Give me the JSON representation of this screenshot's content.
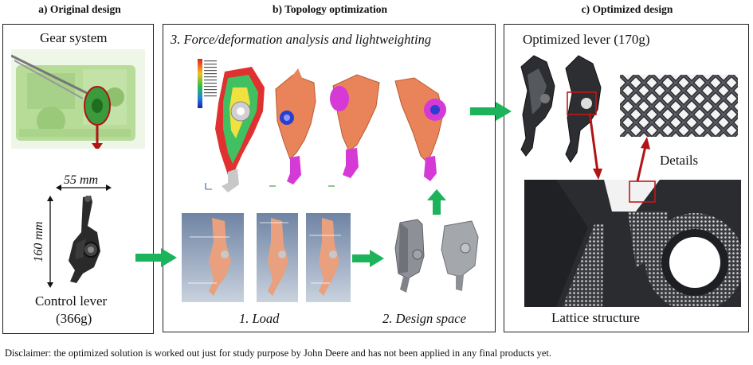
{
  "panels": {
    "a": {
      "title": "a) Original design",
      "gear_label": "Gear system",
      "width_dim": "55 mm",
      "height_dim": "160 mm",
      "lever_label": "Control lever",
      "lever_mass": "(366g)"
    },
    "b": {
      "title": "b) Topology optimization",
      "step3": "3. Force/deformation analysis and lightweighting",
      "step1": "1. Load",
      "step2": "2. Design space"
    },
    "c": {
      "title": "c) Optimized design",
      "optimized_label": "Optimized lever (170g)",
      "details_label": "Details",
      "lattice_label": "Lattice structure"
    }
  },
  "disclaimer": "Disclaimer: the optimized solution is worked out just for study purpose by John Deere and has not been applied in any final products yet.",
  "colors": {
    "arrow_green": "#1db35b",
    "arrow_red": "#b01414",
    "part_orange": "#e9845a",
    "part_magenta": "#d63ad6",
    "machine_green": "#9ccc7a"
  }
}
